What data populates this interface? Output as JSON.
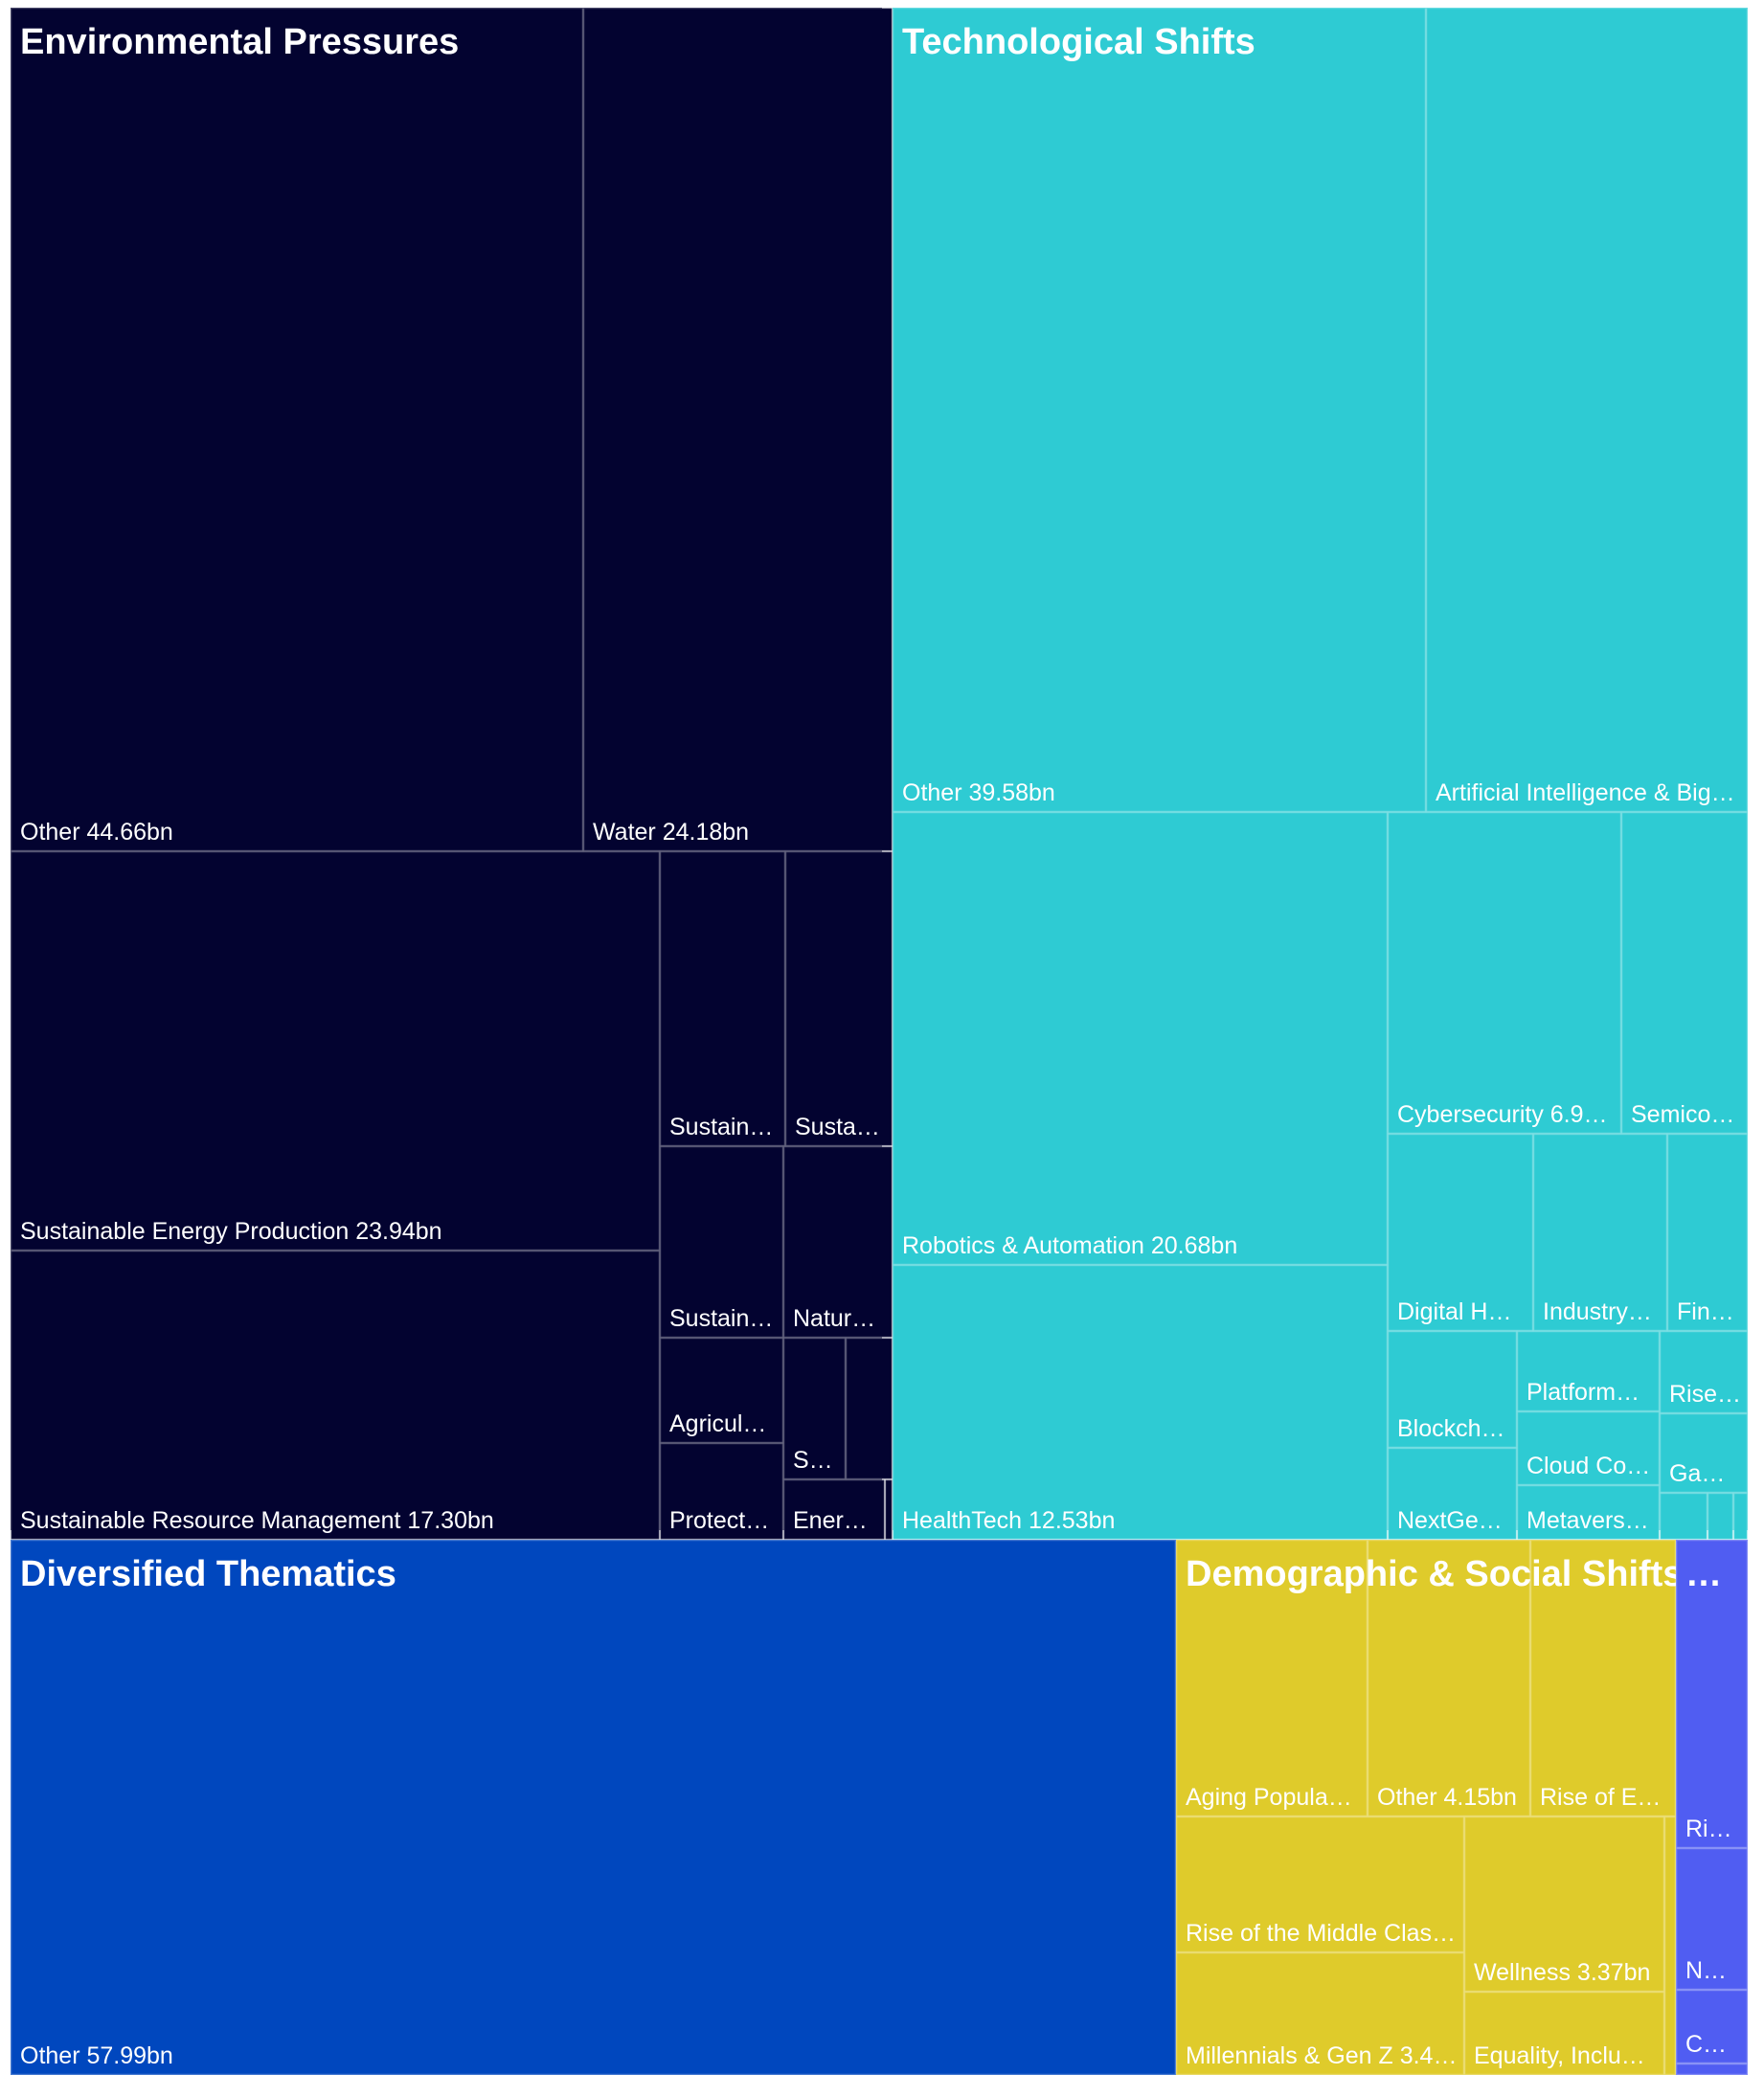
{
  "chart_data": {
    "type": "treemap",
    "value_unit": "bn",
    "groups": [
      {
        "name": "Environmental Pressures",
        "color": "#030330",
        "items": [
          {
            "label": "Other 44.66bn",
            "name": "Other",
            "value": 44.66
          },
          {
            "label": "Water 24.18bn",
            "name": "Water",
            "value": 24.18
          },
          {
            "label": "Sustainable Energy Production 23.94bn",
            "name": "Sustainable Energy Production",
            "value": 23.94
          },
          {
            "label": "Sustainable Resource Management 17.30bn",
            "name": "Sustainable Resource Management",
            "value": 17.3
          },
          {
            "label": "Sustain…",
            "value": 4.8
          },
          {
            "label": "Susta…",
            "value": 4.0
          },
          {
            "label": "Sustain…",
            "value": 3.2
          },
          {
            "label": "Natur…",
            "value": 2.7
          },
          {
            "label": "Agricul…",
            "value": 1.9
          },
          {
            "label": "S…",
            "value": 1.3
          },
          {
            "label": "",
            "value": 0.8
          },
          {
            "label": "Protect…",
            "value": 1.5
          },
          {
            "label": "Ener…",
            "value": 0.9
          },
          {
            "label": "",
            "value": 0.15
          }
        ]
      },
      {
        "name": "Technological Shifts",
        "color": "#2ecbd3",
        "items": [
          {
            "label": "Other 39.58bn",
            "name": "Other",
            "value": 39.58
          },
          {
            "label": "Artificial Intelligence & Big…",
            "value": 23.9
          },
          {
            "label": "Robotics & Automation 20.68bn",
            "name": "Robotics & Automation",
            "value": 20.68
          },
          {
            "label": "HealthTech 12.53bn",
            "name": "HealthTech",
            "value": 12.53
          },
          {
            "label": "Cybersecurity 6.9…",
            "value": 6.9
          },
          {
            "label": "Semico…",
            "value": 3.7
          },
          {
            "label": "Digital H…",
            "value": 2.6
          },
          {
            "label": "Industry…",
            "value": 2.4
          },
          {
            "label": "Fin…",
            "value": 1.4
          },
          {
            "label": "Blockch…",
            "value": 1.8
          },
          {
            "label": "NextGe…",
            "value": 1.2
          },
          {
            "label": "Platform…",
            "value": 1.3
          },
          {
            "label": "Cloud Co…",
            "value": 1.2
          },
          {
            "label": "Metavers…",
            "value": 0.9
          },
          {
            "label": "Rise…",
            "value": 0.8
          },
          {
            "label": "Ga…",
            "value": 0.7
          },
          {
            "label": "",
            "value": 0.4
          },
          {
            "label": "",
            "value": 0.25
          },
          {
            "label": "",
            "value": 0.15
          }
        ]
      },
      {
        "name": "Diversified Thematics",
        "color": "#0047be",
        "items": [
          {
            "label": "Other 57.99bn",
            "name": "Other",
            "value": 57.99
          }
        ]
      },
      {
        "name": "Demographic & Social Shifts",
        "color": "#dfcb2b",
        "items": [
          {
            "label": "Aging Popula…",
            "value": 4.9
          },
          {
            "label": "Other 4.15bn",
            "name": "Other",
            "value": 4.15
          },
          {
            "label": "Rise of E…",
            "value": 3.7
          },
          {
            "label": "Rise of the Middle Clas…",
            "value": 3.5
          },
          {
            "label": "Millennials & Gen Z 3.4…",
            "value": 3.4
          },
          {
            "label": "Wellness 3.37bn",
            "name": "Wellness",
            "value": 3.37
          },
          {
            "label": "Equality, Inclu…",
            "value": 2.7
          },
          {
            "label": "",
            "value": 0.15
          }
        ]
      },
      {
        "name": "…",
        "color": "#505df2",
        "items": [
          {
            "label": "Ri…",
            "value": 1.9
          },
          {
            "label": "N…",
            "value": 1.3
          },
          {
            "label": "C…",
            "value": 0.7
          },
          {
            "label": "",
            "value": 0.2
          }
        ]
      }
    ]
  }
}
